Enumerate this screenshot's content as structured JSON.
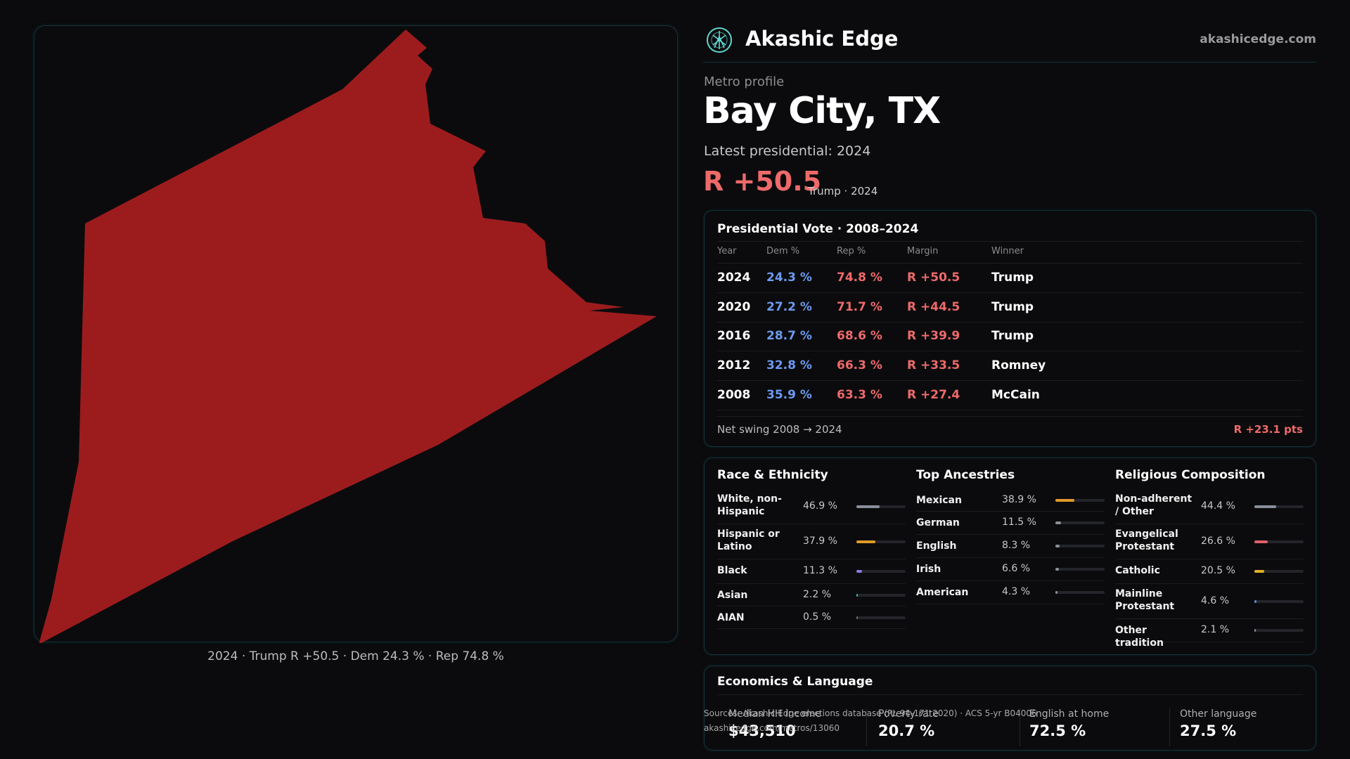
{
  "brand": {
    "name": "Akashic Edge",
    "url": "akashicedge.com"
  },
  "header": {
    "eyebrow": "Metro profile",
    "title": "Bay City, TX",
    "subtitle": "Latest presidential: 2024",
    "margin": "R +50.5",
    "margin_note": "Trump · 2024"
  },
  "map": {
    "fill_color": "#9c1c1e",
    "caption": "2024 · Trump R +50.5 · Dem 24.3 % · Rep 74.8 %"
  },
  "vote_table": {
    "title": "Presidential Vote · 2008–2024",
    "columns": [
      "Year",
      "Dem %",
      "Rep %",
      "Margin",
      "Winner"
    ],
    "rows": [
      {
        "year": "2024",
        "dem": "24.3 %",
        "rep": "74.8 %",
        "margin": "R +50.5",
        "winner": "Trump"
      },
      {
        "year": "2020",
        "dem": "27.2 %",
        "rep": "71.7 %",
        "margin": "R +44.5",
        "winner": "Trump"
      },
      {
        "year": "2016",
        "dem": "28.7 %",
        "rep": "68.6 %",
        "margin": "R +39.9",
        "winner": "Trump"
      },
      {
        "year": "2012",
        "dem": "32.8 %",
        "rep": "66.3 %",
        "margin": "R +33.5",
        "winner": "Romney"
      },
      {
        "year": "2008",
        "dem": "35.9 %",
        "rep": "63.3 %",
        "margin": "R +27.4",
        "winner": "McCain"
      }
    ],
    "net_swing_label": "Net swing 2008 → 2024",
    "net_swing_value": "R +23.1 pts"
  },
  "race": {
    "title": "Race & Ethnicity",
    "items": [
      {
        "label": "White, non-Hispanic",
        "pct": "46.9 %",
        "value": 0.469,
        "color": "#8a909a"
      },
      {
        "label": "Hispanic or Latino",
        "pct": "37.9 %",
        "value": 0.379,
        "color": "#e09a2a"
      },
      {
        "label": "Black",
        "pct": "11.3 %",
        "value": 0.113,
        "color": "#8a7ae0"
      },
      {
        "label": "Asian",
        "pct": "2.2 %",
        "value": 0.022,
        "color": "#3fb6a8"
      },
      {
        "label": "AIAN",
        "pct": "0.5 %",
        "value": 0.005,
        "color": "#6a6a6a"
      }
    ]
  },
  "ancestry": {
    "title": "Top Ancestries",
    "items": [
      {
        "label": "Mexican",
        "pct": "38.9 %",
        "value": 0.389,
        "color": "#e09a2a"
      },
      {
        "label": "German",
        "pct": "11.5 %",
        "value": 0.115,
        "color": "#8a909a"
      },
      {
        "label": "English",
        "pct": "8.3 %",
        "value": 0.083,
        "color": "#8a909a"
      },
      {
        "label": "Irish",
        "pct": "6.6 %",
        "value": 0.066,
        "color": "#8a909a"
      },
      {
        "label": "American",
        "pct": "4.3 %",
        "value": 0.043,
        "color": "#8a909a"
      }
    ]
  },
  "religion": {
    "title": "Religious Composition",
    "items": [
      {
        "label": "Non-adherent / Other",
        "pct": "44.4 %",
        "value": 0.444,
        "color": "#8a909a"
      },
      {
        "label": "Evangelical Protestant",
        "pct": "26.6 %",
        "value": 0.266,
        "color": "#e0606a"
      },
      {
        "label": "Catholic",
        "pct": "20.5 %",
        "value": 0.205,
        "color": "#e0b02a"
      },
      {
        "label": "Mainline Protestant",
        "pct": "4.6 %",
        "value": 0.046,
        "color": "#5a8ae0"
      },
      {
        "label": "Other tradition",
        "pct": "2.1 %",
        "value": 0.021,
        "color": "#8a909a"
      }
    ]
  },
  "economics": {
    "title": "Economics & Language",
    "stats": [
      {
        "label": "Median HH income",
        "value": "$43,510"
      },
      {
        "label": "Poverty rate",
        "value": "20.7 %"
      },
      {
        "label": "English at home",
        "value": "72.5 %"
      },
      {
        "label": "Other language",
        "value": "27.5 %"
      }
    ]
  },
  "source": {
    "line1": "Sources: Akashic Edge elections database (PL 94-171 2020) · ACS 5-yr B04006",
    "line2": "akashicedge.com/metros/13060"
  }
}
